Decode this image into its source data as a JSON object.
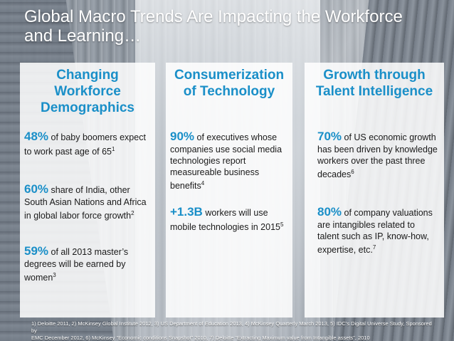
{
  "title": {
    "line1": "Global Macro Trends Are Impacting the Workforce",
    "line2": "and Learning…"
  },
  "columns": [
    {
      "heading": [
        "Changing",
        "Workforce",
        "Demographics"
      ],
      "stats": [
        {
          "big": "48%",
          "rest": " of baby boomers expect to work past age of 65",
          "sup": "1"
        },
        {
          "big": "60%",
          "rest": " share of India, other South Asian Nations and Africa in global labor force growth",
          "sup": "2"
        },
        {
          "big": "59%",
          "rest": " of all 2013 master’s degrees will be earned by women",
          "sup": "3"
        }
      ]
    },
    {
      "heading": [
        "Consumerization",
        "of Technology"
      ],
      "stats": [
        {
          "big": "90%",
          "rest": " of executives whose companies use social media technologies report measureable business benefits",
          "sup": "4"
        },
        {
          "big": "+1.3B",
          "rest": " workers will use mobile technologies in 2015",
          "sup": "5"
        }
      ]
    },
    {
      "heading": [
        "Growth through",
        "Talent Intelligence"
      ],
      "stats": [
        {
          "big": "70%",
          "rest": " of US economic growth has been driven by knowledge workers over the past three decades",
          "sup": "6"
        },
        {
          "big": "80%",
          "rest": " of company valuations are intangibles related to talent such as IP, know-how, expertise, etc.",
          "sup": "7"
        }
      ]
    }
  ],
  "footnote": {
    "line1": "1) Deloitte 2011, 2) McKinsey Global Institute 2012, 3) US Department of Education 2013, 4) McKinsey Quarterly March 2013, 5) IDC’s Digital Universe Study, Sponsored by",
    "line2": "EMC December 2012, 6) McKinsey “Economic conditions Snapshot” 2010, 7) Deloitte “Extracting Maximum value from Intangible assets”, 2010"
  },
  "colors": {
    "accent": "#1a8fc8",
    "panel": "#ffffff",
    "text": "#1a1a1a"
  }
}
